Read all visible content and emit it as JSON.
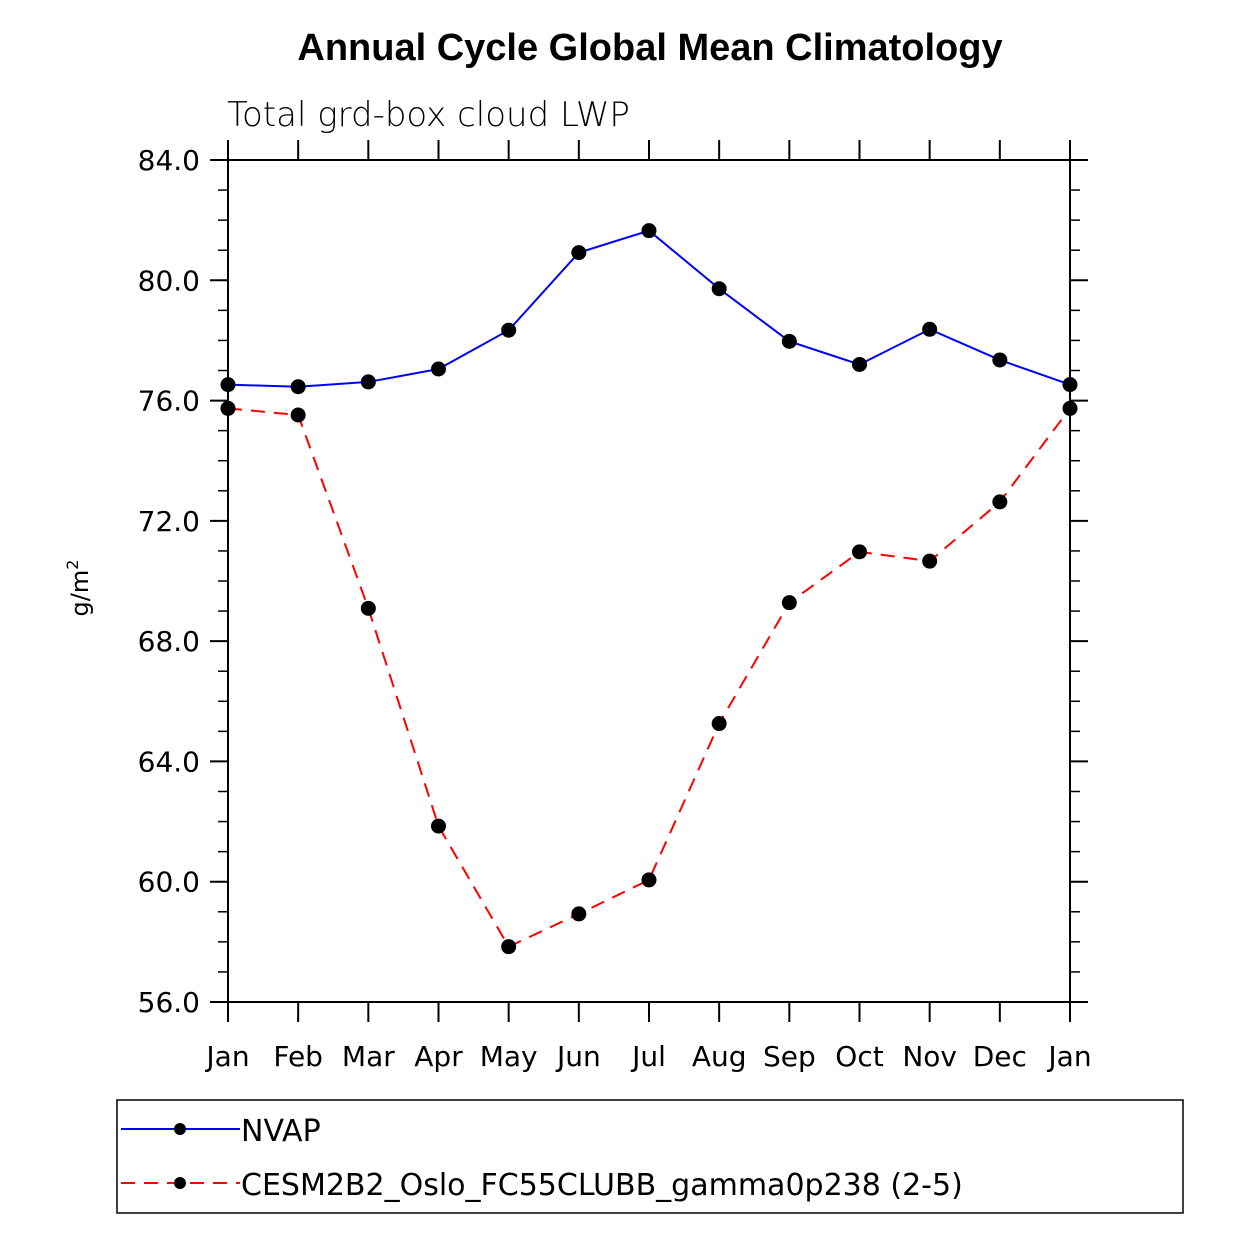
{
  "chart_data": {
    "type": "line",
    "title": "Annual Cycle Global Mean Climatology",
    "subtitle": "Total grd-box cloud LWP",
    "xlabel": "",
    "ylabel": "g/m",
    "ylabel_superscript": "2",
    "categories": [
      "Jan",
      "Feb",
      "Mar",
      "Apr",
      "May",
      "Jun",
      "Jul",
      "Aug",
      "Sep",
      "Oct",
      "Nov",
      "Dec",
      "Jan"
    ],
    "ylim": [
      56.0,
      84.0
    ],
    "yticks": [
      "56.0",
      "60.0",
      "64.0",
      "68.0",
      "72.0",
      "76.0",
      "80.0",
      "84.0"
    ],
    "ytick_values": [
      56,
      60,
      64,
      68,
      72,
      76,
      80,
      84
    ],
    "yminor_step": 1,
    "grid": false,
    "legend_position": "bottom",
    "series": [
      {
        "name": "NVAP",
        "color": "#0000ff",
        "dash": "solid",
        "marker": "filled-circle",
        "values": [
          76.53,
          76.46,
          76.62,
          77.05,
          78.34,
          80.92,
          81.65,
          79.72,
          77.97,
          77.2,
          78.37,
          77.35,
          76.53
        ]
      },
      {
        "name": "CESM2B2_Oslo_FC55CLUBB_gamma0p238 (2-5)",
        "color": "#ff0000",
        "dash": "dashed",
        "marker": "filled-circle",
        "values": [
          75.74,
          75.52,
          69.09,
          61.85,
          57.84,
          58.93,
          60.06,
          65.26,
          69.28,
          70.97,
          70.66,
          72.63,
          75.74
        ]
      }
    ]
  }
}
